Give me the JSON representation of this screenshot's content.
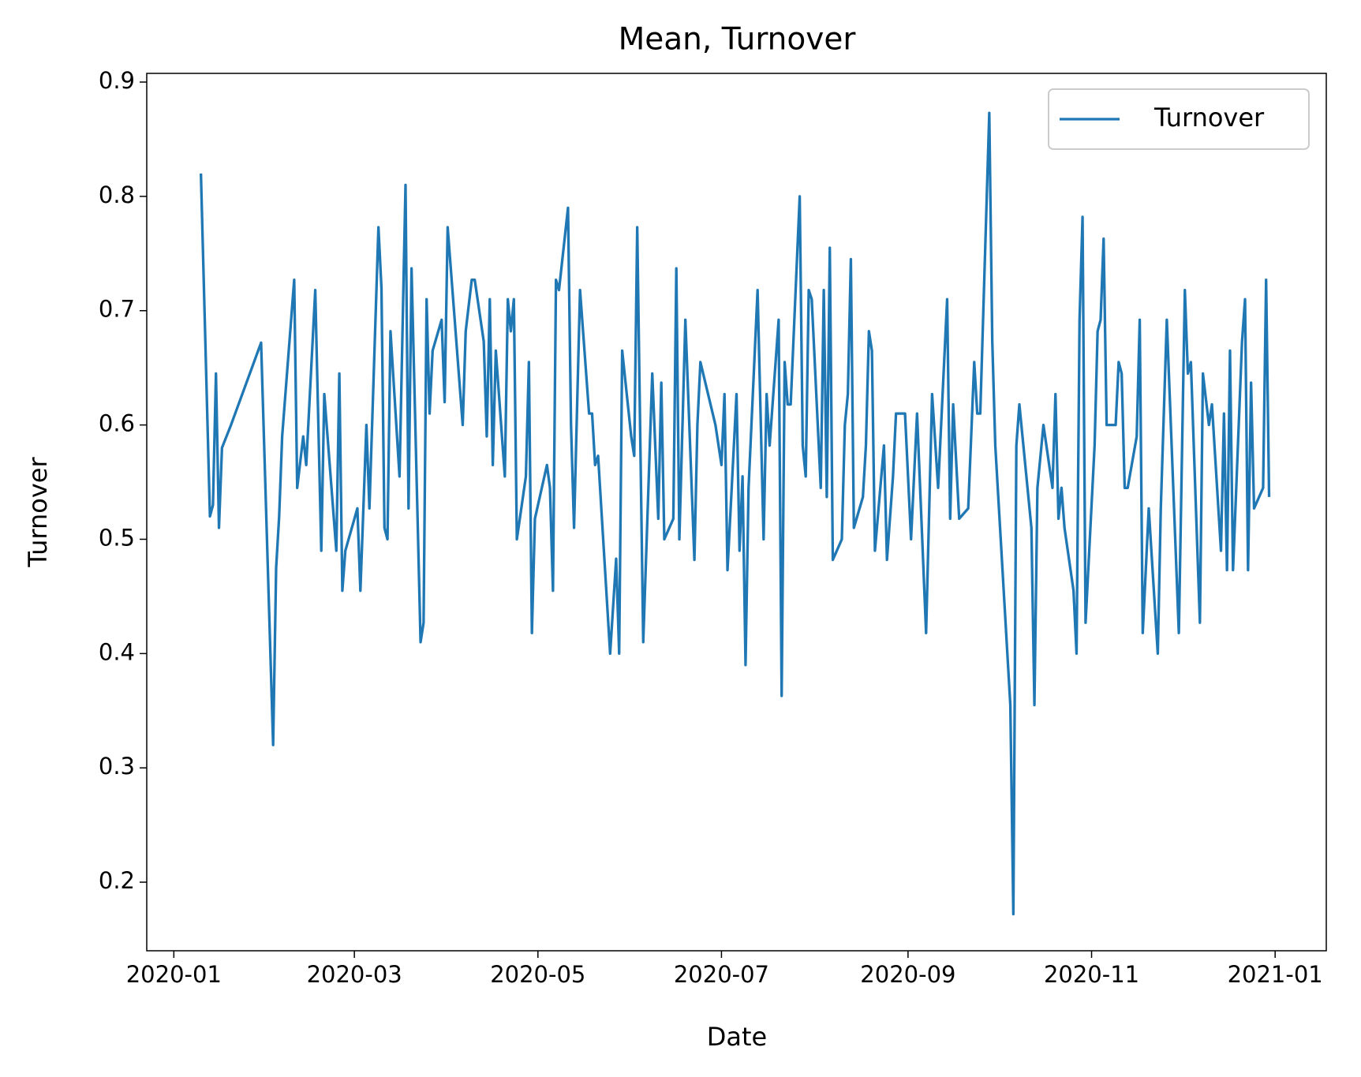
{
  "chart_data": {
    "type": "line",
    "title": "Mean, Turnover",
    "x_label": "Date",
    "y_label": "Turnover",
    "x": [
      "2020-01-10",
      "2020-01-13",
      "2020-01-14",
      "2020-01-15",
      "2020-01-16",
      "2020-01-17",
      "2020-01-20",
      "2020-01-30",
      "2020-02-03",
      "2020-02-04",
      "2020-02-05",
      "2020-02-06",
      "2020-02-10",
      "2020-02-11",
      "2020-02-13",
      "2020-02-14",
      "2020-02-17",
      "2020-02-19",
      "2020-02-20",
      "2020-02-24",
      "2020-02-25",
      "2020-02-26",
      "2020-02-27",
      "2020-03-02",
      "2020-03-03",
      "2020-03-05",
      "2020-03-06",
      "2020-03-09",
      "2020-03-10",
      "2020-03-11",
      "2020-03-12",
      "2020-03-13",
      "2020-03-16",
      "2020-03-18",
      "2020-03-19",
      "2020-03-20",
      "2020-03-23",
      "2020-03-24",
      "2020-03-25",
      "2020-03-26",
      "2020-03-27",
      "2020-03-30",
      "2020-03-31",
      "2020-04-01",
      "2020-04-06",
      "2020-04-07",
      "2020-04-09",
      "2020-04-10",
      "2020-04-13",
      "2020-04-14",
      "2020-04-15",
      "2020-04-16",
      "2020-04-17",
      "2020-04-20",
      "2020-04-21",
      "2020-04-22",
      "2020-04-23",
      "2020-04-24",
      "2020-04-27",
      "2020-04-28",
      "2020-04-29",
      "2020-04-30",
      "2020-05-04",
      "2020-05-05",
      "2020-05-06",
      "2020-05-07",
      "2020-05-08",
      "2020-05-11",
      "2020-05-12",
      "2020-05-13",
      "2020-05-15",
      "2020-05-18",
      "2020-05-19",
      "2020-05-20",
      "2020-05-21",
      "2020-05-25",
      "2020-05-27",
      "2020-05-28",
      "2020-05-29",
      "2020-06-01",
      "2020-06-02",
      "2020-06-03",
      "2020-06-05",
      "2020-06-08",
      "2020-06-10",
      "2020-06-11",
      "2020-06-12",
      "2020-06-15",
      "2020-06-16",
      "2020-06-17",
      "2020-06-19",
      "2020-06-22",
      "2020-06-23",
      "2020-06-24",
      "2020-06-29",
      "2020-07-01",
      "2020-07-02",
      "2020-07-03",
      "2020-07-06",
      "2020-07-07",
      "2020-07-08",
      "2020-07-09",
      "2020-07-10",
      "2020-07-13",
      "2020-07-15",
      "2020-07-16",
      "2020-07-17",
      "2020-07-20",
      "2020-07-21",
      "2020-07-22",
      "2020-07-23",
      "2020-07-24",
      "2020-07-27",
      "2020-07-28",
      "2020-07-29",
      "2020-07-30",
      "2020-07-31",
      "2020-08-03",
      "2020-08-04",
      "2020-08-05",
      "2020-08-06",
      "2020-08-07",
      "2020-08-10",
      "2020-08-11",
      "2020-08-12",
      "2020-08-13",
      "2020-08-14",
      "2020-08-17",
      "2020-08-18",
      "2020-08-19",
      "2020-08-20",
      "2020-08-21",
      "2020-08-24",
      "2020-08-25",
      "2020-08-27",
      "2020-08-28",
      "2020-08-31",
      "2020-09-02",
      "2020-09-04",
      "2020-09-07",
      "2020-09-09",
      "2020-09-11",
      "2020-09-14",
      "2020-09-15",
      "2020-09-16",
      "2020-09-18",
      "2020-09-21",
      "2020-09-23",
      "2020-09-24",
      "2020-09-25",
      "2020-09-28",
      "2020-09-29",
      "2020-09-30",
      "2020-10-05",
      "2020-10-06",
      "2020-10-07",
      "2020-10-08",
      "2020-10-12",
      "2020-10-13",
      "2020-10-14",
      "2020-10-16",
      "2020-10-19",
      "2020-10-20",
      "2020-10-21",
      "2020-10-22",
      "2020-10-23",
      "2020-10-26",
      "2020-10-27",
      "2020-10-28",
      "2020-10-29",
      "2020-10-30",
      "2020-11-02",
      "2020-11-03",
      "2020-11-04",
      "2020-11-05",
      "2020-11-06",
      "2020-11-09",
      "2020-11-10",
      "2020-11-11",
      "2020-11-12",
      "2020-11-13",
      "2020-11-16",
      "2020-11-17",
      "2020-11-18",
      "2020-11-20",
      "2020-11-23",
      "2020-11-24",
      "2020-11-26",
      "2020-11-30",
      "2020-12-02",
      "2020-12-03",
      "2020-12-04",
      "2020-12-07",
      "2020-12-08",
      "2020-12-10",
      "2020-12-11",
      "2020-12-14",
      "2020-12-15",
      "2020-12-16",
      "2020-12-17",
      "2020-12-18",
      "2020-12-21",
      "2020-12-22",
      "2020-12-23",
      "2020-12-24",
      "2020-12-25",
      "2020-12-28",
      "2020-12-29",
      "2020-12-30"
    ],
    "series": [
      {
        "name": "Turnover",
        "color": "#1f77b4",
        "values": [
          0.82,
          0.52,
          0.53,
          0.645,
          0.51,
          0.58,
          0.6,
          0.672,
          0.32,
          0.475,
          0.52,
          0.59,
          0.727,
          0.545,
          0.59,
          0.565,
          0.718,
          0.49,
          0.627,
          0.49,
          0.645,
          0.455,
          0.49,
          0.527,
          0.455,
          0.6,
          0.527,
          0.773,
          0.72,
          0.51,
          0.5,
          0.682,
          0.555,
          0.81,
          0.527,
          0.737,
          0.41,
          0.427,
          0.71,
          0.61,
          0.665,
          0.692,
          0.62,
          0.773,
          0.6,
          0.682,
          0.727,
          0.727,
          0.673,
          0.59,
          0.71,
          0.565,
          0.665,
          0.555,
          0.71,
          0.682,
          0.71,
          0.5,
          0.555,
          0.655,
          0.418,
          0.518,
          0.565,
          0.545,
          0.455,
          0.727,
          0.718,
          0.79,
          0.6,
          0.51,
          0.718,
          0.61,
          0.61,
          0.565,
          0.573,
          0.4,
          0.483,
          0.4,
          0.665,
          0.59,
          0.573,
          0.773,
          0.41,
          0.645,
          0.518,
          0.637,
          0.5,
          0.518,
          0.737,
          0.5,
          0.692,
          0.482,
          0.6,
          0.655,
          0.6,
          0.565,
          0.627,
          0.473,
          0.627,
          0.49,
          0.555,
          0.39,
          0.545,
          0.718,
          0.5,
          0.627,
          0.582,
          0.692,
          0.363,
          0.655,
          0.618,
          0.618,
          0.8,
          0.582,
          0.555,
          0.718,
          0.71,
          0.545,
          0.718,
          0.537,
          0.755,
          0.482,
          0.5,
          0.6,
          0.627,
          0.745,
          0.51,
          0.537,
          0.582,
          0.682,
          0.665,
          0.49,
          0.582,
          0.482,
          0.555,
          0.61,
          0.61,
          0.5,
          0.61,
          0.418,
          0.627,
          0.545,
          0.71,
          0.518,
          0.618,
          0.518,
          0.527,
          0.655,
          0.61,
          0.61,
          0.873,
          0.673,
          0.582,
          0.355,
          0.172,
          0.582,
          0.618,
          0.51,
          0.355,
          0.545,
          0.6,
          0.545,
          0.627,
          0.518,
          0.545,
          0.51,
          0.455,
          0.4,
          0.692,
          0.782,
          0.427,
          0.582,
          0.682,
          0.692,
          0.763,
          0.6,
          0.6,
          0.655,
          0.645,
          0.545,
          0.545,
          0.59,
          0.692,
          0.418,
          0.527,
          0.4,
          0.527,
          0.692,
          0.418,
          0.718,
          0.645,
          0.655,
          0.427,
          0.645,
          0.6,
          0.618,
          0.49,
          0.61,
          0.473,
          0.665,
          0.473,
          0.673,
          0.71,
          0.473,
          0.637,
          0.527,
          0.545,
          0.727,
          0.537
        ]
      }
    ],
    "xlim": [
      "2019-12-23",
      "2021-01-18"
    ],
    "xticks": [
      "2020-01",
      "2020-03",
      "2020-05",
      "2020-07",
      "2020-09",
      "2020-11",
      "2021-01"
    ],
    "ylim": [
      0.14,
      0.9076
    ],
    "yticks": [
      0.2,
      0.3,
      0.4,
      0.5,
      0.6,
      0.7,
      0.8,
      0.9
    ],
    "grid": false,
    "legend": "upper right"
  }
}
